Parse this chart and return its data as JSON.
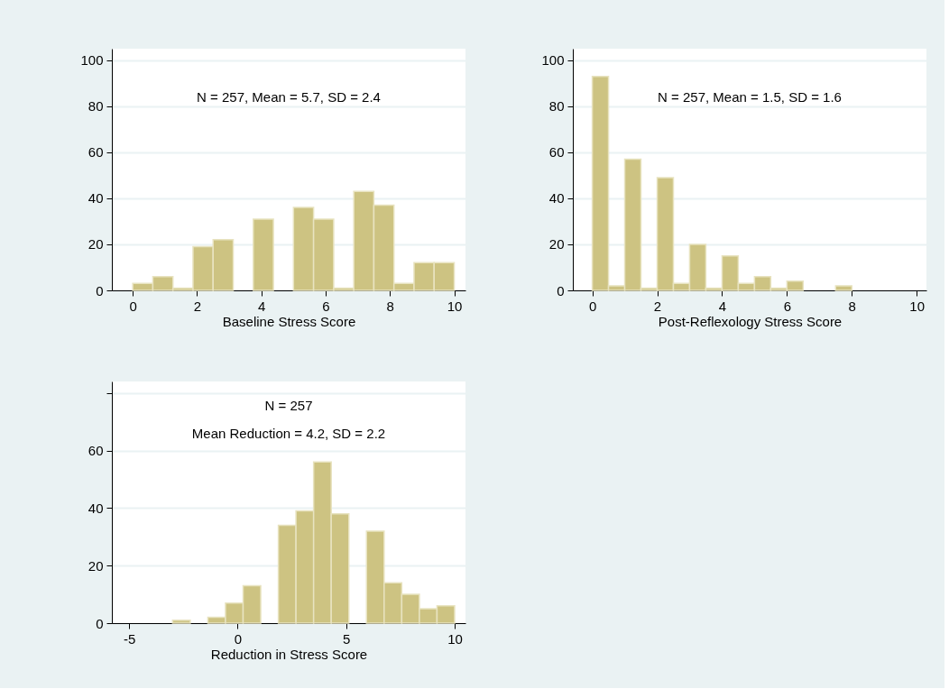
{
  "chart_data": [
    {
      "type": "histogram",
      "xlabel": "Baseline Stress Score",
      "annotations": [
        "N = 257, Mean = 5.7, SD = 2.4"
      ],
      "bins": [
        0,
        0.625,
        1.25,
        1.875,
        2.5,
        3.125,
        3.75,
        4.375,
        5,
        5.625,
        6.25,
        6.875,
        7.5,
        8.125,
        8.75,
        9.375,
        10
      ],
      "values": [
        3,
        6,
        1,
        19,
        22,
        0,
        31,
        0,
        36,
        31,
        1,
        43,
        37,
        3,
        12,
        12
      ],
      "color": "#cdc382",
      "xlim": [
        -0.65,
        10.35
      ],
      "xticks": [
        0,
        2,
        4,
        6,
        8,
        10
      ],
      "ylim": [
        0,
        105
      ],
      "yticks": [
        0,
        20,
        40,
        60,
        80,
        100
      ],
      "grid": "y"
    },
    {
      "type": "histogram",
      "xlabel": "Post-Reflexology Stress Score",
      "annotations": [
        "N = 257, Mean = 1.5, SD = 1.6"
      ],
      "bins": [
        0,
        0.5,
        1,
        1.5,
        2,
        2.5,
        3,
        3.5,
        4,
        4.5,
        5,
        5.5,
        6,
        6.5,
        7,
        7.5,
        8
      ],
      "values": [
        93,
        2,
        57,
        1,
        49,
        3,
        20,
        1,
        15,
        3,
        6,
        1,
        4,
        0,
        0,
        2
      ],
      "color": "#cdc382",
      "xlim": [
        -0.6,
        10.3
      ],
      "xticks": [
        0,
        2,
        4,
        6,
        8,
        10
      ],
      "ylim": [
        0,
        105
      ],
      "yticks": [
        0,
        20,
        40,
        60,
        80,
        100
      ],
      "grid": "y"
    },
    {
      "type": "histogram",
      "xlabel": "Reduction in Stress Score",
      "annotations": [
        "N = 257",
        "Mean Reduction = 4.2, SD = 2.2"
      ],
      "bins": [
        -3,
        -2.1875,
        -1.375,
        -0.5625,
        0.25,
        1.0625,
        1.875,
        2.6875,
        3.5,
        4.3125,
        5.125,
        5.9375,
        6.75,
        7.5625,
        8.375,
        9.1875,
        10
      ],
      "values": [
        1,
        0,
        2,
        7,
        13,
        0,
        34,
        39,
        56,
        38,
        0,
        32,
        14,
        10,
        5,
        6
      ],
      "color": "#cdc382",
      "xlim": [
        -5.8,
        10.5
      ],
      "xticks": [
        -5,
        0,
        5,
        10
      ],
      "ylim": [
        0,
        84
      ],
      "yticks": [
        0,
        20,
        40,
        60,
        {
          "value": 80,
          "label": null
        }
      ],
      "grid": "y"
    }
  ]
}
